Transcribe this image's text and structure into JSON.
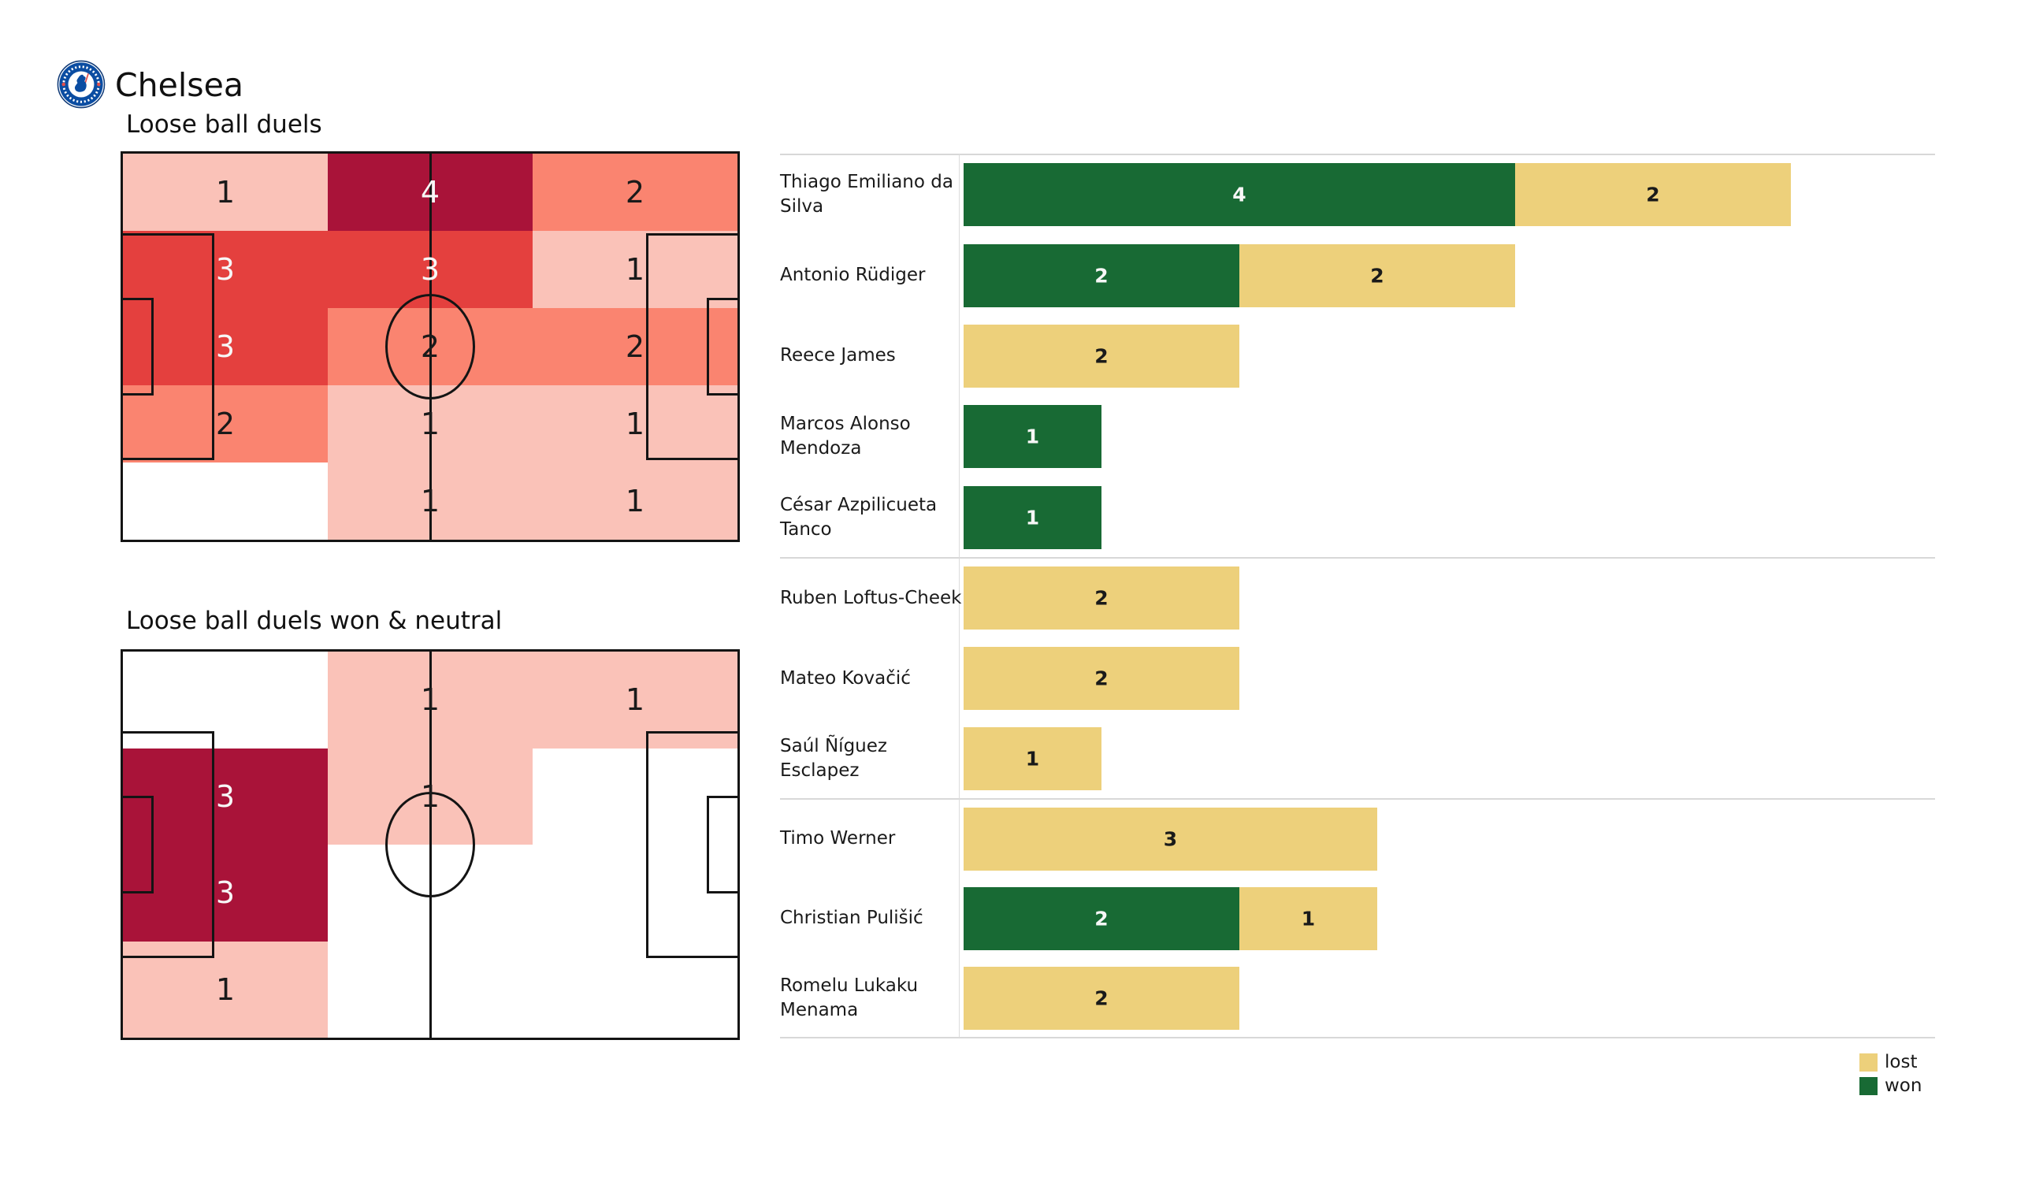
{
  "team": {
    "name": "Chelsea"
  },
  "colors": {
    "pink": "#fac2b8",
    "salmon": "#fa8470",
    "red": "#e4403e",
    "crimson": "#a91339",
    "won": "#186a34",
    "lost": "#edd07b",
    "pitch_line": "#141414",
    "text_dark": "#1a1a1a",
    "text_light": "#f7f7f7",
    "separator": "#d8d8d8",
    "crest_blue": "#0b4da2",
    "crest_red": "#e2504c"
  },
  "legend": {
    "items": [
      {
        "label": "lost",
        "color_key": "lost"
      },
      {
        "label": "won",
        "color_key": "won"
      }
    ]
  },
  "chart_data": [
    {
      "type": "heatmap",
      "title": "Loose ball duels",
      "grid": {
        "rows": 5,
        "cols": 3
      },
      "legend": "shading intensity = number of duels in zone",
      "cells": [
        {
          "row": 0,
          "col": 0,
          "value": 1,
          "level": "pink"
        },
        {
          "row": 0,
          "col": 1,
          "value": 4,
          "level": "crimson"
        },
        {
          "row": 0,
          "col": 2,
          "value": 2,
          "level": "salmon"
        },
        {
          "row": 1,
          "col": 0,
          "value": 3,
          "level": "red"
        },
        {
          "row": 1,
          "col": 1,
          "value": 3,
          "level": "red"
        },
        {
          "row": 1,
          "col": 2,
          "value": 1,
          "level": "pink"
        },
        {
          "row": 2,
          "col": 0,
          "value": 3,
          "level": "red"
        },
        {
          "row": 2,
          "col": 1,
          "value": 2,
          "level": "salmon"
        },
        {
          "row": 2,
          "col": 2,
          "value": 2,
          "level": "salmon"
        },
        {
          "row": 3,
          "col": 0,
          "value": 2,
          "level": "salmon"
        },
        {
          "row": 3,
          "col": 1,
          "value": 1,
          "level": "pink"
        },
        {
          "row": 3,
          "col": 2,
          "value": 1,
          "level": "pink"
        },
        {
          "row": 4,
          "col": 1,
          "value": 1,
          "level": "pink"
        },
        {
          "row": 4,
          "col": 2,
          "value": 1,
          "level": "pink"
        }
      ]
    },
    {
      "type": "heatmap",
      "title": "Loose ball duels won & neutral",
      "grid": {
        "rows": 4,
        "cols": 3
      },
      "cells": [
        {
          "row": 0,
          "col": 1,
          "value": 1,
          "level": "pink"
        },
        {
          "row": 0,
          "col": 2,
          "value": 1,
          "level": "pink"
        },
        {
          "row": 1,
          "col": 0,
          "value": 3,
          "level": "crimson"
        },
        {
          "row": 1,
          "col": 1,
          "value": 1,
          "level": "pink"
        },
        {
          "row": 2,
          "col": 0,
          "value": 3,
          "level": "crimson"
        },
        {
          "row": 3,
          "col": 0,
          "value": 1,
          "level": "pink"
        }
      ]
    },
    {
      "type": "bar",
      "orientation": "horizontal",
      "stacked": true,
      "value_labels": true,
      "x_max_units": 7,
      "legend_position": "bottom-right",
      "categories": [
        "Thiago Emiliano da Silva",
        "Antonio Rüdiger",
        "Reece James",
        "Marcos  Alonso Mendoza",
        "César Azpilicueta Tanco",
        "Ruben Loftus-Cheek",
        "Mateo Kovačić",
        "Saúl Ñíguez Esclapez",
        "Timo Werner",
        "Christian Pulišić",
        "Romelu Lukaku Menama"
      ],
      "series": [
        {
          "name": "won",
          "color_key": "won",
          "values": [
            4,
            2,
            0,
            1,
            1,
            0,
            0,
            0,
            0,
            2,
            0
          ]
        },
        {
          "name": "lost",
          "color_key": "lost",
          "values": [
            2,
            2,
            2,
            0,
            0,
            2,
            2,
            1,
            3,
            1,
            2
          ]
        }
      ],
      "group_sizes": [
        5,
        3,
        3
      ]
    }
  ]
}
